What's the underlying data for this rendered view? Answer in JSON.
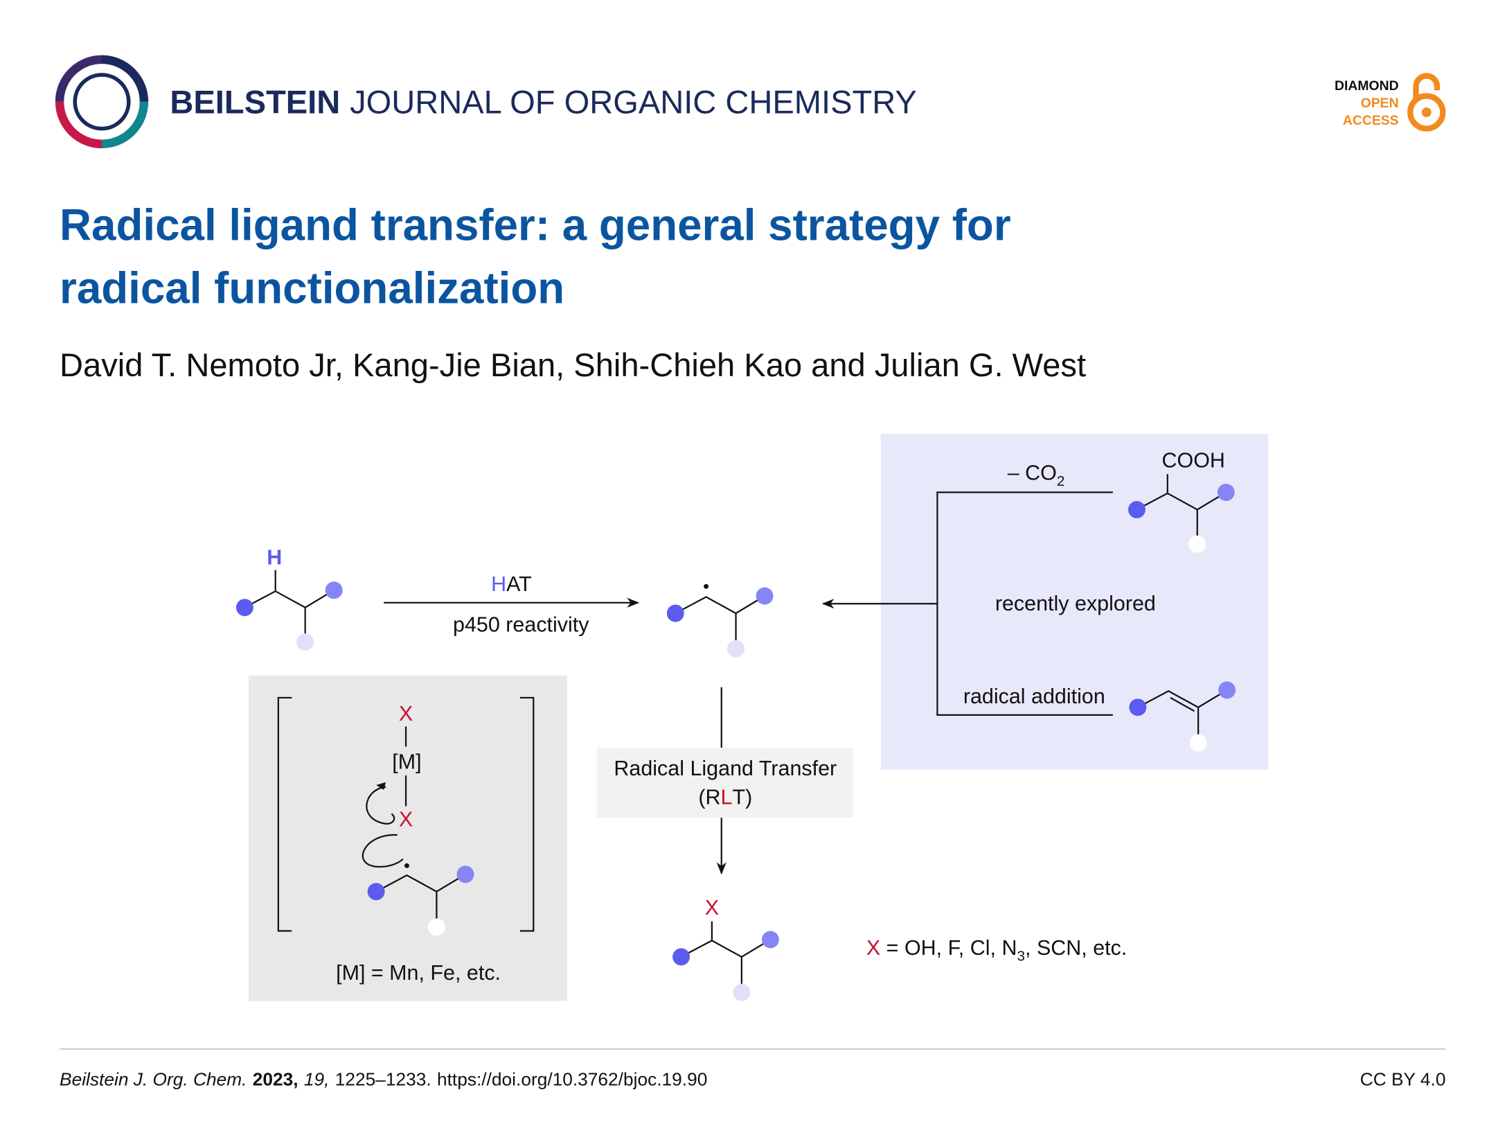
{
  "header": {
    "journal_bold": "BEILSTEIN",
    "journal_rest": "JOURNAL OF ORGANIC CHEMISTRY",
    "badge": [
      "DIAMOND",
      "OPEN",
      "ACCESS"
    ]
  },
  "title_lines": [
    "Radical ligand transfer: a general strategy for",
    "radical functionalization"
  ],
  "authors": "David T. Nemoto Jr, Kang-Jie Bian, Shih-Chieh Kao and Julian G. West",
  "scheme": {
    "substrate_h": "H",
    "hat_label": [
      "H",
      "AT"
    ],
    "hat_sub": "p450 reactivity",
    "decarboxylation": [
      "– CO",
      "2"
    ],
    "cooh": "COOH",
    "recently_explored": "recently explored",
    "radical_addition": "radical addition",
    "mechanism": {
      "x_top": "X",
      "metal": "[M]",
      "x_bottom": "X",
      "caption": "[M] = Mn, Fe, etc."
    },
    "rlt_label": "Radical Ligand Transfer",
    "rlt_abbrev": [
      "(R",
      "L",
      "T)"
    ],
    "product_x": "X",
    "x_definition": [
      "X",
      " = OH, F, Cl, N",
      "3",
      ", SCN, etc."
    ]
  },
  "footer": {
    "journal": "Beilstein J. Org. Chem.",
    "year": "2023,",
    "volume": "19,",
    "pages": "1225–1233.",
    "doi": "https://doi.org/10.3762/bjoc.19.90",
    "license": "CC BY 4.0"
  }
}
